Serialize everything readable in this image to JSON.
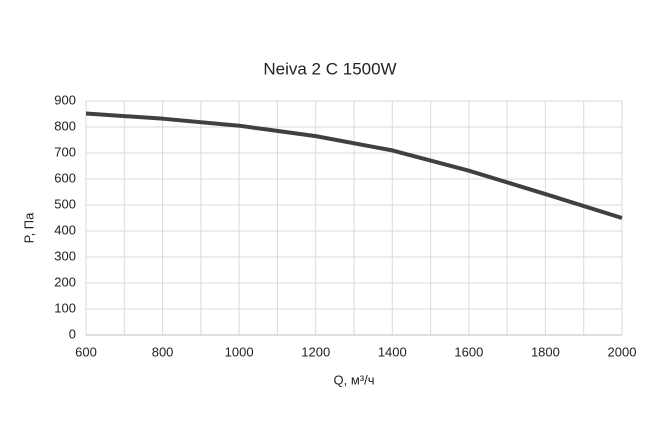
{
  "chart_data": {
    "type": "line",
    "title": "Neiva 2 C 1500W",
    "x_label": "Q, м³/ч",
    "y_label": "P, Па",
    "x": [
      600,
      800,
      1000,
      1200,
      1400,
      1600,
      1800,
      2000
    ],
    "series": [
      {
        "name": "Neiva 2 C 1500W",
        "color": "#404040",
        "values": [
          852,
          832,
          805,
          765,
          710,
          632,
          542,
          450
        ]
      }
    ],
    "xlim": [
      600,
      2000
    ],
    "xticks": [
      600,
      800,
      1000,
      1200,
      1400,
      1600,
      1800,
      2000
    ],
    "x_minor_grid": [
      700,
      900,
      1100,
      1300,
      1500,
      1700,
      1900
    ],
    "ylim": [
      0,
      900
    ],
    "yticks": [
      0,
      100,
      200,
      300,
      400,
      500,
      600,
      700,
      800,
      900
    ],
    "grid": true
  }
}
